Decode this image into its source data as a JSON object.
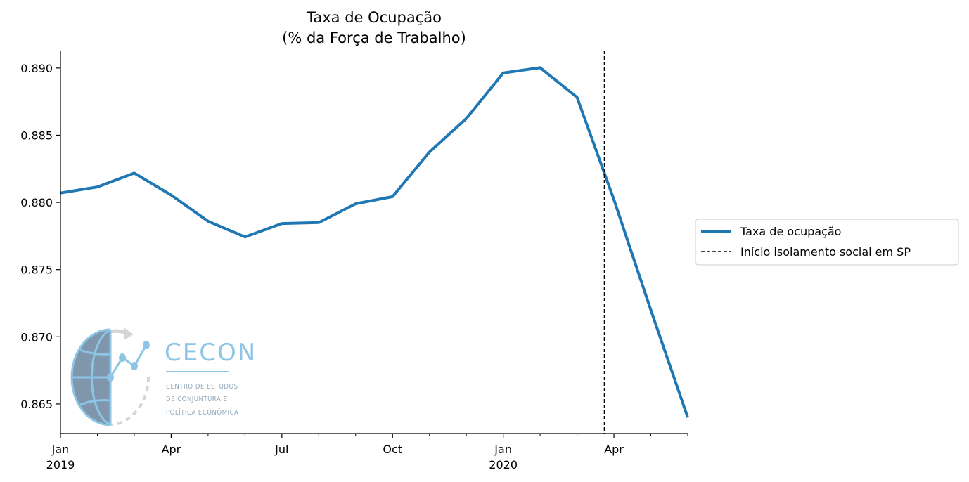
{
  "chart_data": {
    "type": "line",
    "title_line1": "Taxa de Ocupação",
    "title_line2": "(% da Força de Trabalho)",
    "xlabel": "",
    "ylabel": "",
    "x": [
      "2019-01",
      "2019-02",
      "2019-03",
      "2019-04",
      "2019-05",
      "2019-06",
      "2019-07",
      "2019-08",
      "2019-09",
      "2019-10",
      "2019-11",
      "2019-12",
      "2020-01",
      "2020-02",
      "2020-03",
      "2020-04",
      "2020-05",
      "2020-06"
    ],
    "series": [
      {
        "name": "Taxa de ocupação",
        "color": "#1f77b4",
        "values": [
          0.8807,
          0.88115,
          0.88218,
          0.88055,
          0.8786,
          0.87743,
          0.87843,
          0.8785,
          0.8799,
          0.88043,
          0.88375,
          0.88625,
          0.88963,
          0.89003,
          0.88782,
          0.8802,
          0.872,
          0.864
        ]
      }
    ],
    "vline": {
      "x": "2020-03-24",
      "label": "Início isolamento social em SP",
      "color": "#000000",
      "style": "dashed"
    },
    "ylim": [
      0.8628,
      0.8913
    ],
    "xlim": [
      "2019-01",
      "2020-06"
    ],
    "yticks": [
      0.865,
      0.87,
      0.875,
      0.88,
      0.885,
      0.89
    ],
    "ytick_labels": [
      "0.865",
      "0.870",
      "0.875",
      "0.880",
      "0.885",
      "0.890"
    ],
    "xticks_major": [
      {
        "x": "2019-01",
        "label": "Jan",
        "sublabel": "2019"
      },
      {
        "x": "2019-04",
        "label": "Apr",
        "sublabel": ""
      },
      {
        "x": "2019-07",
        "label": "Jul",
        "sublabel": ""
      },
      {
        "x": "2019-10",
        "label": "Oct",
        "sublabel": ""
      },
      {
        "x": "2020-01",
        "label": "Jan",
        "sublabel": "2020"
      },
      {
        "x": "2020-04",
        "label": "Apr",
        "sublabel": ""
      }
    ],
    "xticks_minor": [
      "2019-02",
      "2019-03",
      "2019-05",
      "2019-06",
      "2019-08",
      "2019-09",
      "2019-11",
      "2019-12",
      "2020-02",
      "2020-03",
      "2020-05",
      "2020-06"
    ],
    "grid": false,
    "legend_position": "right-center"
  },
  "logo": {
    "name": "CECON",
    "line1": "CENTRO DE ESTUDOS",
    "line2": "DE CONJUNTURA E",
    "line3": "POLÍTICA ECONÔMICA"
  }
}
